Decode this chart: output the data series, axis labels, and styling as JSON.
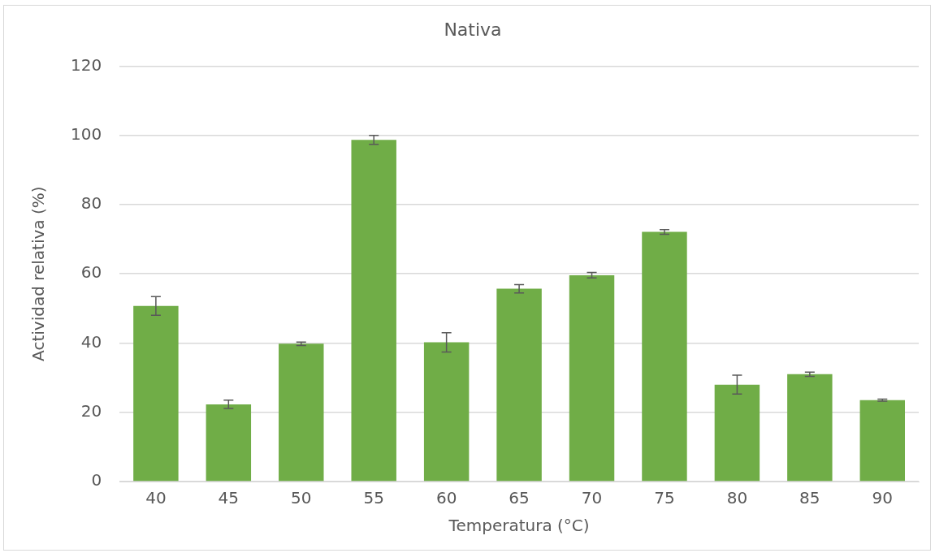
{
  "chart_data": {
    "type": "bar",
    "title": "Nativa",
    "xlabel": "Temperatura (°C)",
    "ylabel": "Actividad relativa (%)",
    "categories": [
      "40",
      "45",
      "50",
      "55",
      "60",
      "65",
      "70",
      "75",
      "80",
      "85",
      "90"
    ],
    "series": [
      {
        "color": "#70ad47",
        "values": [
          50.7,
          22.3,
          39.8,
          98.7,
          40.2,
          55.7,
          59.6,
          72.1,
          28.0,
          31.0,
          23.5
        ],
        "errors": [
          2.7,
          1.2,
          0.5,
          1.3,
          2.8,
          1.2,
          0.8,
          0.7,
          2.7,
          0.6,
          0.3
        ]
      }
    ],
    "ylim": [
      0,
      120
    ],
    "yticks": [
      0,
      20,
      40,
      60,
      80,
      100,
      120
    ],
    "grid": "y",
    "legend": false
  }
}
